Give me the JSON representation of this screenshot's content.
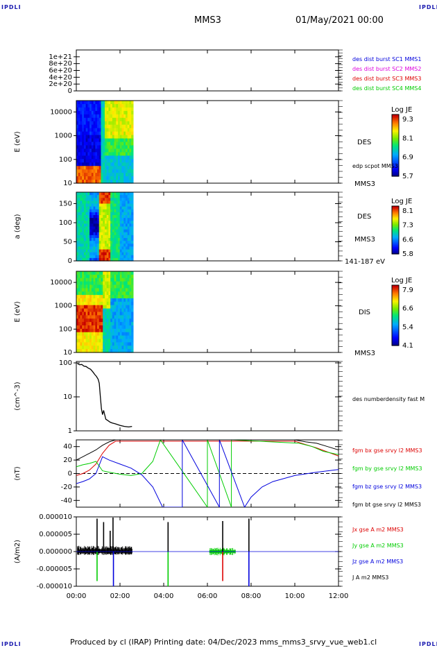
{
  "header": {
    "mission": "MMS3",
    "datetime": "01/May/2021 00:00",
    "corner_left": "IPDLI",
    "corner_right": "IPDLI"
  },
  "footer": {
    "text": "Produced by cl (IRAP)   Printing date: 04/Dec/2023   mms_mms3_srvy_vue_web1.cl",
    "corner_left": "IPDLI",
    "corner_right": "IPDLI"
  },
  "colors": {
    "black": "#000000",
    "blue": "#0000dd",
    "magenta": "#dd00dd",
    "red": "#dd0000",
    "green": "#00cc00"
  },
  "time_axis": {
    "ticks": [
      "00:00",
      "02:00",
      "04:00",
      "06:00",
      "08:00",
      "10:00",
      "12:00"
    ],
    "start_hours": 0,
    "end_hours": 12
  },
  "chart_data": [
    {
      "type": "line",
      "id": "burst",
      "scale": "linear",
      "ylim": [
        0,
        1.2e+21
      ],
      "yticks": [
        0,
        2e+20,
        4e+20,
        6e+20,
        8e+20,
        1e+21
      ],
      "ytick_labels": [
        "0",
        "2e+20",
        "4e+20",
        "6e+20",
        "8e+20",
        "1e+21"
      ],
      "series": [
        {
          "name": "baseline",
          "color": "#000000",
          "x": [
            0,
            12
          ],
          "y": [
            0,
            0
          ],
          "dashed": true
        }
      ],
      "legend": [
        {
          "label": "des dist burst SC1 MMS1",
          "color": "#0000dd"
        },
        {
          "label": "des dist burst SC2 MMS2",
          "color": "#dd00dd"
        },
        {
          "label": "des dist burst SC3 MMS3",
          "color": "#dd0000"
        },
        {
          "label": "des dist burst SC4 MMS4",
          "color": "#00cc00"
        }
      ]
    },
    {
      "type": "heatmap",
      "id": "des_energy",
      "ylabel": "E (eV)",
      "scale": "log",
      "ylim": [
        10,
        30000
      ],
      "yticks": [
        10,
        100,
        1000,
        10000
      ],
      "ytick_labels": [
        "10",
        "100",
        "1000",
        "10000"
      ],
      "data_end_hours": 2.6,
      "colorbar": {
        "title": "Log JE",
        "min": 5.7,
        "max": 9.5,
        "labels": [
          "9.3",
          "8.1",
          "6.9",
          "5.7"
        ]
      },
      "right_labels": [
        "DES",
        "edp scpot MMS3",
        "MMS3"
      ]
    },
    {
      "type": "heatmap",
      "id": "des_pitch",
      "ylabel": "a (deg)",
      "scale": "linear",
      "ylim": [
        0,
        180
      ],
      "yticks": [
        0,
        50,
        100,
        150
      ],
      "ytick_labels": [
        "0",
        "50",
        "100",
        "150"
      ],
      "data_end_hours": 2.6,
      "colorbar": {
        "title": "Log JE",
        "min": 5.8,
        "max": 8.3,
        "labels": [
          "8.1",
          "7.3",
          "6.6",
          "5.8"
        ]
      },
      "right_labels": [
        "DES",
        "MMS3",
        "141-187 eV"
      ]
    },
    {
      "type": "heatmap",
      "id": "dis_energy",
      "ylabel": "E (eV)",
      "scale": "log",
      "ylim": [
        10,
        30000
      ],
      "yticks": [
        10,
        100,
        1000,
        10000
      ],
      "ytick_labels": [
        "10",
        "100",
        "1000",
        "10000"
      ],
      "data_end_hours": 2.6,
      "colorbar": {
        "title": "Log JE",
        "min": 4.1,
        "max": 8.0,
        "labels": [
          "7.9",
          "6.6",
          "5.4",
          "4.1"
        ]
      },
      "right_labels": [
        "DIS",
        "MMS3"
      ]
    },
    {
      "type": "line",
      "id": "density",
      "ylabel": "(cm^-3)",
      "scale": "log",
      "ylim": [
        1,
        110
      ],
      "yticks": [
        1,
        10,
        100
      ],
      "ytick_labels": [
        "1",
        "10",
        "100"
      ],
      "series": [
        {
          "name": "des numberdensity fast M",
          "color": "#000000",
          "x": [
            0.05,
            0.15,
            0.25,
            0.35,
            0.45,
            0.55,
            0.65,
            0.75,
            0.85,
            0.92,
            1.0,
            1.05,
            1.1,
            1.15,
            1.2,
            1.25,
            1.35,
            1.45,
            1.55,
            1.65,
            1.8,
            2.0,
            2.2,
            2.4,
            2.55
          ],
          "y": [
            95,
            88,
            90,
            80,
            78,
            70,
            65,
            55,
            45,
            40,
            33,
            25,
            10,
            4.5,
            3,
            4,
            2.2,
            2,
            1.8,
            1.7,
            1.6,
            1.45,
            1.35,
            1.3,
            1.35
          ]
        }
      ],
      "legend": [
        {
          "label": "des numberdensity fast M",
          "color": "#000000"
        }
      ]
    },
    {
      "type": "line",
      "id": "fgm",
      "ylabel": "(nT)",
      "scale": "linear",
      "ylim": [
        -50,
        50
      ],
      "yticks": [
        -40,
        -20,
        0,
        20,
        40
      ],
      "ytick_labels": [
        "-40",
        "-20",
        "0",
        "20",
        "40"
      ],
      "series": [
        {
          "name": "fgm bx gse srvy l2 MMS3",
          "color": "#dd0000",
          "x": [
            0,
            0.3,
            0.6,
            0.9,
            1.2,
            1.5,
            1.8,
            10.0,
            10.5,
            11.0,
            11.5,
            12.0
          ],
          "y": [
            -3,
            0,
            5,
            14,
            30,
            42,
            48,
            48,
            43,
            38,
            32,
            26
          ]
        },
        {
          "name": "fgm by gse srvy l2 MMS3",
          "color": "#00cc00",
          "x": [
            0,
            0.3,
            0.6,
            0.9,
            1.2,
            1.5,
            2.0,
            2.5,
            3.0,
            3.5,
            3.85,
            6.0,
            6.0,
            7.1,
            7.1,
            10.2,
            10.8,
            11.3,
            12.0
          ],
          "y": [
            10,
            13,
            15,
            18,
            4,
            2,
            -1,
            -3,
            0,
            18,
            50,
            -50,
            50,
            -50,
            50,
            45,
            40,
            33,
            28
          ]
        },
        {
          "name": "fgm bz gse srvy l2 MMS3",
          "color": "#0000dd",
          "x": [
            0,
            0.3,
            0.6,
            0.9,
            1.2,
            1.5,
            2.0,
            2.5,
            3.0,
            3.5,
            3.95,
            4.85,
            4.85,
            6.55,
            6.55,
            7.7,
            8.0,
            8.5,
            9.0,
            10.0,
            11.0,
            12.0
          ],
          "y": [
            -15,
            -12,
            -8,
            0,
            25,
            20,
            14,
            8,
            -2,
            -20,
            -50,
            -50,
            50,
            -50,
            50,
            -50,
            -35,
            -20,
            -12,
            -3,
            2,
            6
          ]
        },
        {
          "name": "fgm bt gse srvy l2 MMS3",
          "color": "#000000",
          "x": [
            0,
            0.3,
            0.6,
            0.9,
            1.2,
            1.5,
            1.8,
            10.0,
            10.5,
            11.0,
            11.5,
            12.0
          ],
          "y": [
            20,
            25,
            30,
            35,
            42,
            47,
            50,
            50,
            47,
            45,
            40,
            35
          ]
        }
      ],
      "reference_line": 0
    },
    {
      "type": "line",
      "id": "current",
      "ylabel": "(A/m2)",
      "scale": "linear",
      "ylim": [
        -1e-05,
        1e-05
      ],
      "yticks": [
        -1e-05,
        -5e-06,
        0,
        5e-06,
        1e-05
      ],
      "ytick_labels": [
        "-0.000010",
        "-0.000005",
        "0.000000",
        "0.000005",
        "0.000010"
      ],
      "series": [
        {
          "name": "Jx gse A m2 MMS3",
          "color": "#dd0000"
        },
        {
          "name": "Jy gse A m2 MMS3",
          "color": "#00cc00"
        },
        {
          "name": "Jz gse A m2 MMS3",
          "color": "#0000dd"
        },
        {
          "name": "J A m2 MMS3",
          "color": "#000000"
        }
      ],
      "spikes": [
        {
          "x": 0.95,
          "y": 9.5e-06
        },
        {
          "x": 1.25,
          "y": 8.5e-06
        },
        {
          "x": 1.55,
          "y": 6e-06
        },
        {
          "x": 1.68,
          "y": 9.8e-06
        },
        {
          "x": 4.2,
          "y": 8.5e-06
        },
        {
          "x": 6.7,
          "y": 8.8e-06
        },
        {
          "x": 7.9,
          "y": 9.5e-06
        }
      ],
      "dips": [
        {
          "x": 0.95,
          "y": -8.5e-06,
          "color": "#00cc00"
        },
        {
          "x": 1.7,
          "y": -1e-05,
          "color": "#0000dd"
        },
        {
          "x": 4.2,
          "y": -1e-05,
          "color": "#00cc00"
        },
        {
          "x": 6.7,
          "y": -8.5e-06,
          "color": "#dd0000"
        },
        {
          "x": 7.9,
          "y": -1e-05,
          "color": "#0000dd"
        }
      ]
    }
  ]
}
